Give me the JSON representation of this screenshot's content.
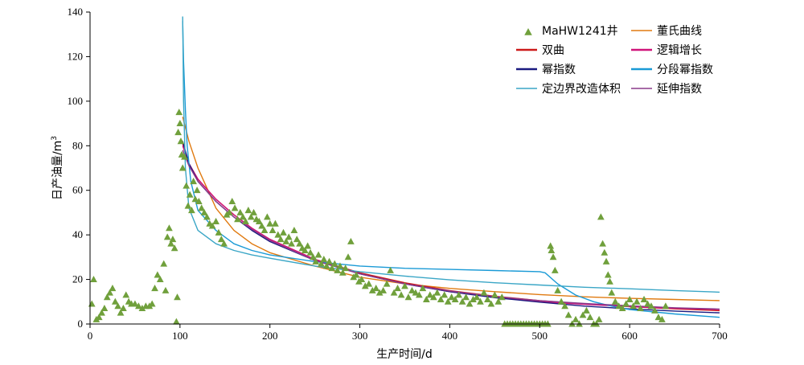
{
  "chart_data": {
    "type": "scatter",
    "xlabel": "生产时间/d",
    "ylabel": "日产油量/m",
    "ylabel_superscript": "3",
    "xlim": [
      0,
      700
    ],
    "ylim": [
      0,
      140
    ],
    "xticks": [
      "0",
      "100",
      "200",
      "300",
      "400",
      "500",
      "600",
      "700"
    ],
    "yticks": [
      "0",
      "20",
      "40",
      "60",
      "80",
      "100",
      "120",
      "140"
    ],
    "grid": false,
    "legend_position": "top-right",
    "scatter_series": {
      "name": "MaHW1241井",
      "color": "#70a03c",
      "points": [
        [
          2,
          9
        ],
        [
          4,
          20
        ],
        [
          7,
          2
        ],
        [
          10,
          3
        ],
        [
          13,
          5
        ],
        [
          16,
          7
        ],
        [
          19,
          12
        ],
        [
          22,
          14
        ],
        [
          25,
          16
        ],
        [
          28,
          10
        ],
        [
          31,
          8
        ],
        [
          34,
          5
        ],
        [
          37,
          7
        ],
        [
          40,
          13
        ],
        [
          43,
          10
        ],
        [
          46,
          9
        ],
        [
          50,
          9
        ],
        [
          54,
          8
        ],
        [
          58,
          7
        ],
        [
          62,
          8
        ],
        [
          66,
          8
        ],
        [
          69,
          9
        ],
        [
          72,
          16
        ],
        [
          75,
          22
        ],
        [
          78,
          20
        ],
        [
          82,
          27
        ],
        [
          84,
          15
        ],
        [
          86,
          39
        ],
        [
          88,
          43
        ],
        [
          90,
          36
        ],
        [
          92,
          38
        ],
        [
          94,
          34
        ],
        [
          96,
          1
        ],
        [
          97,
          12
        ],
        [
          98,
          86
        ],
        [
          99,
          95
        ],
        [
          100,
          90
        ],
        [
          101,
          82
        ],
        [
          102,
          76
        ],
        [
          103,
          70
        ],
        [
          105,
          75
        ],
        [
          107,
          62
        ],
        [
          109,
          53
        ],
        [
          111,
          58
        ],
        [
          113,
          51
        ],
        [
          115,
          64
        ],
        [
          117,
          56
        ],
        [
          119,
          60
        ],
        [
          121,
          55
        ],
        [
          124,
          52
        ],
        [
          127,
          50
        ],
        [
          130,
          48
        ],
        [
          133,
          45
        ],
        [
          136,
          44
        ],
        [
          140,
          46
        ],
        [
          143,
          41
        ],
        [
          146,
          38
        ],
        [
          149,
          36
        ],
        [
          152,
          49
        ],
        [
          155,
          50
        ],
        [
          158,
          55
        ],
        [
          161,
          52
        ],
        [
          164,
          47
        ],
        [
          167,
          50
        ],
        [
          170,
          48
        ],
        [
          173,
          46
        ],
        [
          176,
          51
        ],
        [
          179,
          48
        ],
        [
          182,
          50
        ],
        [
          185,
          47
        ],
        [
          188,
          46
        ],
        [
          191,
          44
        ],
        [
          194,
          42
        ],
        [
          197,
          48
        ],
        [
          200,
          45
        ],
        [
          203,
          42
        ],
        [
          206,
          45
        ],
        [
          209,
          40
        ],
        [
          212,
          38
        ],
        [
          215,
          41
        ],
        [
          218,
          37
        ],
        [
          221,
          39
        ],
        [
          224,
          36
        ],
        [
          227,
          42
        ],
        [
          230,
          38
        ],
        [
          233,
          36
        ],
        [
          236,
          34
        ],
        [
          239,
          33
        ],
        [
          242,
          35
        ],
        [
          245,
          32
        ],
        [
          248,
          30
        ],
        [
          251,
          28
        ],
        [
          254,
          31
        ],
        [
          257,
          27
        ],
        [
          260,
          29
        ],
        [
          263,
          26
        ],
        [
          266,
          28
        ],
        [
          269,
          25
        ],
        [
          272,
          27
        ],
        [
          275,
          24
        ],
        [
          278,
          26
        ],
        [
          281,
          23
        ],
        [
          284,
          25
        ],
        [
          287,
          30
        ],
        [
          290,
          37
        ],
        [
          293,
          21
        ],
        [
          296,
          22
        ],
        [
          299,
          19
        ],
        [
          302,
          20
        ],
        [
          306,
          17
        ],
        [
          310,
          18
        ],
        [
          314,
          15
        ],
        [
          318,
          16
        ],
        [
          322,
          14
        ],
        [
          326,
          15
        ],
        [
          330,
          18
        ],
        [
          334,
          24
        ],
        [
          338,
          14
        ],
        [
          342,
          16
        ],
        [
          346,
          13
        ],
        [
          350,
          17
        ],
        [
          354,
          12
        ],
        [
          358,
          15
        ],
        [
          362,
          14
        ],
        [
          366,
          13
        ],
        [
          370,
          16
        ],
        [
          374,
          11
        ],
        [
          378,
          13
        ],
        [
          382,
          12
        ],
        [
          386,
          14
        ],
        [
          390,
          11
        ],
        [
          394,
          13
        ],
        [
          398,
          10
        ],
        [
          402,
          12
        ],
        [
          406,
          11
        ],
        [
          410,
          13
        ],
        [
          414,
          10
        ],
        [
          418,
          12
        ],
        [
          422,
          9
        ],
        [
          426,
          11
        ],
        [
          430,
          12
        ],
        [
          434,
          10
        ],
        [
          438,
          14
        ],
        [
          442,
          11
        ],
        [
          446,
          9
        ],
        [
          450,
          13
        ],
        [
          454,
          10
        ],
        [
          458,
          12
        ],
        [
          461,
          0
        ],
        [
          464,
          0
        ],
        [
          467,
          0
        ],
        [
          470,
          0
        ],
        [
          473,
          0
        ],
        [
          476,
          0
        ],
        [
          479,
          0
        ],
        [
          482,
          0
        ],
        [
          485,
          0
        ],
        [
          488,
          0
        ],
        [
          491,
          0
        ],
        [
          494,
          0
        ],
        [
          497,
          0
        ],
        [
          500,
          0
        ],
        [
          503,
          0
        ],
        [
          506,
          0
        ],
        [
          509,
          0
        ],
        [
          512,
          35
        ],
        [
          513,
          33
        ],
        [
          515,
          30
        ],
        [
          517,
          24
        ],
        [
          520,
          15
        ],
        [
          524,
          10
        ],
        [
          528,
          8
        ],
        [
          532,
          4
        ],
        [
          536,
          0
        ],
        [
          540,
          2
        ],
        [
          544,
          0
        ],
        [
          548,
          4
        ],
        [
          552,
          6
        ],
        [
          556,
          3
        ],
        [
          560,
          0
        ],
        [
          563,
          0
        ],
        [
          566,
          2
        ],
        [
          568,
          48
        ],
        [
          570,
          36
        ],
        [
          572,
          32
        ],
        [
          574,
          28
        ],
        [
          576,
          22
        ],
        [
          578,
          19
        ],
        [
          580,
          14
        ],
        [
          584,
          10
        ],
        [
          588,
          8
        ],
        [
          592,
          7
        ],
        [
          596,
          9
        ],
        [
          600,
          11
        ],
        [
          604,
          8
        ],
        [
          608,
          10
        ],
        [
          612,
          7
        ],
        [
          616,
          11
        ],
        [
          620,
          9
        ],
        [
          624,
          8
        ],
        [
          628,
          6
        ],
        [
          632,
          3
        ],
        [
          636,
          2
        ],
        [
          640,
          8
        ]
      ]
    },
    "series": [
      {
        "name": "董氏曲线",
        "color": "#e07a10",
        "points": [
          [
            103,
            93
          ],
          [
            110,
            82
          ],
          [
            120,
            70
          ],
          [
            140,
            52
          ],
          [
            160,
            42
          ],
          [
            180,
            36
          ],
          [
            200,
            32
          ],
          [
            250,
            26
          ],
          [
            300,
            21
          ],
          [
            350,
            18
          ],
          [
            400,
            16
          ],
          [
            450,
            14.5
          ],
          [
            500,
            13.2
          ],
          [
            550,
            12.2
          ],
          [
            600,
            11.5
          ],
          [
            650,
            11
          ],
          [
            700,
            10.5
          ]
        ]
      },
      {
        "name": "双曲",
        "color": "#cc1a1a",
        "points": [
          [
            103,
            81
          ],
          [
            110,
            72
          ],
          [
            120,
            65
          ],
          [
            140,
            56
          ],
          [
            160,
            49
          ],
          [
            180,
            43
          ],
          [
            200,
            38
          ],
          [
            250,
            29
          ],
          [
            300,
            23
          ],
          [
            350,
            18.5
          ],
          [
            400,
            15
          ],
          [
            450,
            12.5
          ],
          [
            500,
            10.5
          ],
          [
            550,
            9
          ],
          [
            600,
            7.8
          ],
          [
            650,
            6.8
          ],
          [
            700,
            6
          ]
        ]
      },
      {
        "name": "逻辑增长",
        "color": "#d0147a",
        "points": [
          [
            103,
            80
          ],
          [
            110,
            72
          ],
          [
            120,
            65
          ],
          [
            140,
            56
          ],
          [
            160,
            49
          ],
          [
            180,
            43
          ],
          [
            200,
            38
          ],
          [
            250,
            29
          ],
          [
            300,
            22.5
          ],
          [
            350,
            18
          ],
          [
            400,
            14.5
          ],
          [
            450,
            12
          ],
          [
            500,
            10
          ],
          [
            550,
            8.8
          ],
          [
            600,
            7.8
          ],
          [
            650,
            7
          ],
          [
            700,
            6.5
          ]
        ]
      },
      {
        "name": "幂指数",
        "color": "#1a1a80",
        "points": [
          [
            103,
            82
          ],
          [
            110,
            72
          ],
          [
            120,
            64
          ],
          [
            140,
            55
          ],
          [
            160,
            48
          ],
          [
            180,
            42
          ],
          [
            200,
            37
          ],
          [
            250,
            28.5
          ],
          [
            300,
            22.5
          ],
          [
            350,
            18
          ],
          [
            400,
            14.5
          ],
          [
            450,
            11.8
          ],
          [
            500,
            9.8
          ],
          [
            550,
            8
          ],
          [
            600,
            6.8
          ],
          [
            650,
            5.8
          ],
          [
            700,
            5
          ]
        ]
      },
      {
        "name": "分段幂指数",
        "color": "#1a9ad6",
        "points": [
          [
            103,
            136
          ],
          [
            104,
            118
          ],
          [
            106,
            96
          ],
          [
            108,
            80
          ],
          [
            112,
            64
          ],
          [
            120,
            51
          ],
          [
            140,
            42
          ],
          [
            160,
            36
          ],
          [
            180,
            33
          ],
          [
            200,
            31
          ],
          [
            250,
            28
          ],
          [
            300,
            26
          ],
          [
            350,
            25
          ],
          [
            400,
            24.5
          ],
          [
            450,
            24
          ],
          [
            500,
            23.5
          ],
          [
            506,
            23
          ],
          [
            520,
            18
          ],
          [
            540,
            13
          ],
          [
            560,
            10
          ],
          [
            580,
            8
          ],
          [
            600,
            6.5
          ],
          [
            650,
            4.5
          ],
          [
            700,
            3
          ]
        ]
      },
      {
        "name": "定边界改造体积",
        "color": "#3aa6c6",
        "points": [
          [
            103,
            138
          ],
          [
            104,
            100
          ],
          [
            106,
            70
          ],
          [
            110,
            52
          ],
          [
            120,
            42
          ],
          [
            140,
            36
          ],
          [
            160,
            33
          ],
          [
            180,
            31
          ],
          [
            200,
            29.5
          ],
          [
            250,
            26
          ],
          [
            300,
            23.5
          ],
          [
            350,
            21.5
          ],
          [
            400,
            19.8
          ],
          [
            450,
            18.5
          ],
          [
            500,
            17.5
          ],
          [
            550,
            16.5
          ],
          [
            600,
            15.8
          ],
          [
            650,
            15
          ],
          [
            700,
            14.3
          ]
        ]
      },
      {
        "name": "延伸指数",
        "color": "#8a3a8a",
        "points": [
          [
            103,
            78
          ],
          [
            110,
            71
          ],
          [
            120,
            64
          ],
          [
            140,
            55
          ],
          [
            160,
            48
          ],
          [
            180,
            42.5
          ],
          [
            200,
            37.5
          ],
          [
            250,
            28.5
          ],
          [
            300,
            22.5
          ],
          [
            350,
            18
          ],
          [
            400,
            14.8
          ],
          [
            450,
            12.3
          ],
          [
            500,
            10.5
          ],
          [
            550,
            9.2
          ],
          [
            600,
            8.2
          ],
          [
            650,
            7.3
          ],
          [
            700,
            6.7
          ]
        ]
      }
    ],
    "legend": [
      {
        "label": "MaHW1241井",
        "kind": "marker",
        "color": "#70a03c"
      },
      {
        "label": "董氏曲线",
        "kind": "line",
        "color": "#e07a10"
      },
      {
        "label": "双曲",
        "kind": "line",
        "color": "#cc1a1a"
      },
      {
        "label": "逻辑增长",
        "kind": "line",
        "color": "#d0147a"
      },
      {
        "label": "幂指数",
        "kind": "line",
        "color": "#1a1a80"
      },
      {
        "label": "分段幂指数",
        "kind": "line",
        "color": "#1a9ad6"
      },
      {
        "label": "定边界改造体积",
        "kind": "line",
        "color": "#3aa6c6"
      },
      {
        "label": "延伸指数",
        "kind": "line",
        "color": "#8a3a8a"
      }
    ]
  }
}
